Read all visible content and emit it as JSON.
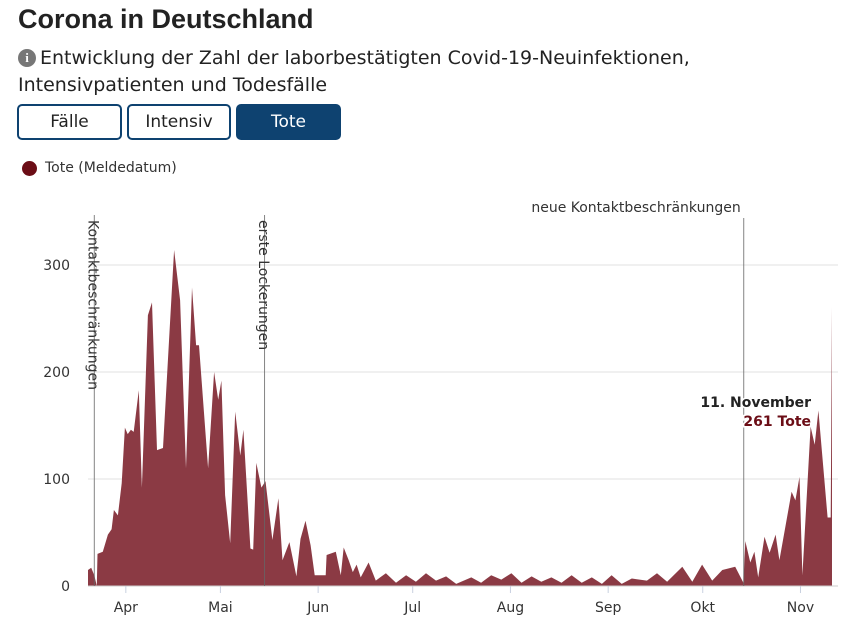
{
  "header": {
    "title": "Corona in Deutschland",
    "info_icon": "info-circle-icon",
    "subtitle": "Entwicklung der Zahl der laborbestätigten Covid-19-Neuinfektionen, Intensivpatienten und Todesfälle"
  },
  "tabs": [
    {
      "label": "Fälle",
      "active": false
    },
    {
      "label": "Intensiv",
      "active": false
    },
    {
      "label": "Tote",
      "active": true
    }
  ],
  "colors": {
    "series": "#8b3a44",
    "legend_dot": "#6b0d16",
    "active_tab": "#0e4270",
    "highlight_value": "#6b0d16"
  },
  "chart_data": {
    "type": "area",
    "title": "",
    "legend": [
      {
        "label": "Tote (Meldedatum)",
        "position": "top-left"
      }
    ],
    "x_unit": "day of year 2020",
    "xlim": [
      80,
      316
    ],
    "ylim": [
      0,
      340
    ],
    "yticks": [
      0,
      100,
      200,
      300
    ],
    "xticks": [
      {
        "x": 92,
        "label": "Apr"
      },
      {
        "x": 122,
        "label": "Mai"
      },
      {
        "x": 153,
        "label": "Jun"
      },
      {
        "x": 183,
        "label": "Jul"
      },
      {
        "x": 214,
        "label": "Aug"
      },
      {
        "x": 245,
        "label": "Sep"
      },
      {
        "x": 275,
        "label": "Okt"
      },
      {
        "x": 306,
        "label": "Nov"
      }
    ],
    "grid": true,
    "events": [
      {
        "x": 82,
        "label": "Kontaktbeschränkungen",
        "orientation": "vertical"
      },
      {
        "x": 136,
        "label": "erste Lockerungen",
        "orientation": "vertical"
      },
      {
        "x": 288,
        "label": "neue Kontaktbeschränkungen",
        "orientation": "horizontal"
      }
    ],
    "annotation": {
      "date": "11. November",
      "value_label": "261 Tote"
    },
    "series": [
      {
        "name": "Tote (Meldedatum)",
        "points": [
          [
            80,
            15
          ],
          [
            81,
            17
          ],
          [
            82,
            10
          ],
          [
            82.8,
            0
          ],
          [
            83,
            30
          ],
          [
            84.7,
            32
          ],
          [
            86.3,
            48
          ],
          [
            87.5,
            53
          ],
          [
            88.2,
            71
          ],
          [
            89.5,
            66
          ],
          [
            90.7,
            96
          ],
          [
            91.7,
            148
          ],
          [
            92.6,
            142
          ],
          [
            93.6,
            146
          ],
          [
            94.5,
            144
          ],
          [
            96.1,
            183
          ],
          [
            97.1,
            92
          ],
          [
            99,
            253
          ],
          [
            100.3,
            265
          ],
          [
            101.9,
            127
          ],
          [
            103.8,
            129
          ],
          [
            107.3,
            314
          ],
          [
            109.2,
            267
          ],
          [
            111.1,
            110
          ],
          [
            113,
            279
          ],
          [
            114.3,
            225
          ],
          [
            115.2,
            225
          ],
          [
            118.1,
            110
          ],
          [
            120,
            200
          ],
          [
            121.3,
            174
          ],
          [
            122.3,
            192
          ],
          [
            123.5,
            85
          ],
          [
            125.1,
            40
          ],
          [
            126.7,
            163
          ],
          [
            128.3,
            122
          ],
          [
            129.3,
            146
          ],
          [
            131.5,
            35
          ],
          [
            132.4,
            34
          ],
          [
            133.4,
            115
          ],
          [
            135,
            92
          ],
          [
            136.3,
            98
          ],
          [
            138.5,
            43
          ],
          [
            140.4,
            82
          ],
          [
            141.7,
            24
          ],
          [
            143.9,
            41
          ],
          [
            146.1,
            9
          ],
          [
            147.4,
            44
          ],
          [
            149,
            61
          ],
          [
            150.6,
            38
          ],
          [
            151.9,
            10
          ],
          [
            155.4,
            10
          ],
          [
            155.7,
            29
          ],
          [
            158.6,
            32
          ],
          [
            160.2,
            10
          ],
          [
            161.1,
            36
          ],
          [
            162.7,
            24
          ],
          [
            164,
            13
          ],
          [
            165.2,
            20
          ],
          [
            166.5,
            8
          ],
          [
            169,
            22
          ],
          [
            171.3,
            5
          ],
          [
            174.5,
            12
          ],
          [
            177.7,
            3
          ],
          [
            180.9,
            10
          ],
          [
            184,
            4
          ],
          [
            187.2,
            12
          ],
          [
            190.4,
            5
          ],
          [
            193.6,
            9
          ],
          [
            196.8,
            2
          ],
          [
            201.6,
            8
          ],
          [
            204.7,
            3
          ],
          [
            207.9,
            10
          ],
          [
            211.1,
            6
          ],
          [
            214.3,
            12
          ],
          [
            217.5,
            3
          ],
          [
            220.7,
            9
          ],
          [
            223.8,
            4
          ],
          [
            227,
            8
          ],
          [
            230.2,
            3
          ],
          [
            233.4,
            10
          ],
          [
            236.6,
            3
          ],
          [
            239.8,
            8
          ],
          [
            243,
            2
          ],
          [
            246.1,
            10
          ],
          [
            249.3,
            2
          ],
          [
            252.5,
            7
          ],
          [
            257.3,
            5
          ],
          [
            260.5,
            12
          ],
          [
            263.7,
            4
          ],
          [
            268.5,
            18
          ],
          [
            271.7,
            4
          ],
          [
            274.8,
            20
          ],
          [
            278,
            5
          ],
          [
            281.2,
            15
          ],
          [
            285.3,
            18
          ],
          [
            287.9,
            3
          ],
          [
            288.5,
            42
          ],
          [
            290.1,
            22
          ],
          [
            291.4,
            32
          ],
          [
            292.6,
            8
          ],
          [
            294.6,
            46
          ],
          [
            296.2,
            31
          ],
          [
            298.1,
            48
          ],
          [
            299.3,
            24
          ],
          [
            303.2,
            88
          ],
          [
            304.4,
            80
          ],
          [
            305.7,
            102
          ],
          [
            306.6,
            10
          ],
          [
            309.2,
            149
          ],
          [
            310.5,
            132
          ],
          [
            311.7,
            164
          ],
          [
            314.6,
            64
          ],
          [
            315.6,
            64
          ],
          [
            316,
            261
          ]
        ]
      }
    ]
  }
}
